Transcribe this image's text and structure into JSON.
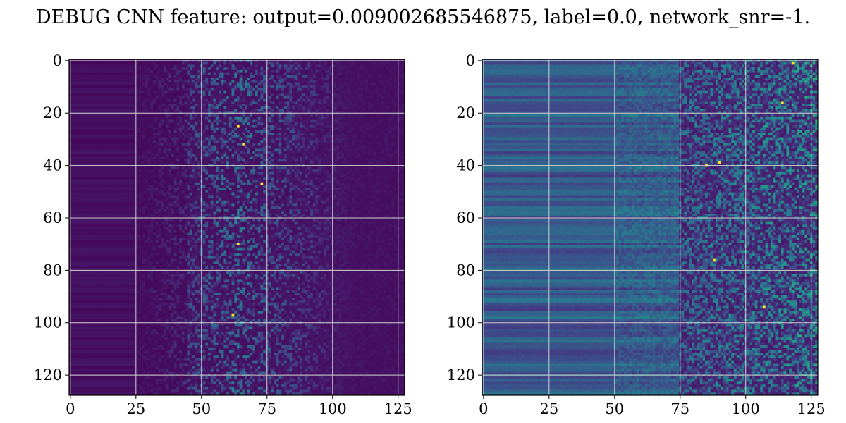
{
  "title": "DEBUG CNN feature: output=0.009002685546875, label=0.0, network_snr=-1.",
  "chart_data": [
    {
      "type": "heatmap",
      "title": "",
      "xlabel": "",
      "ylabel": "",
      "xlim": [
        0,
        127
      ],
      "ylim": [
        127,
        0
      ],
      "grid": true,
      "colormap": "viridis",
      "x_ticks": [
        "0",
        "25",
        "50",
        "75",
        "100",
        "125"
      ],
      "y_ticks": [
        "0",
        "20",
        "40",
        "60",
        "80",
        "100",
        "120"
      ],
      "grid_size": [
        128,
        128
      ],
      "hotspots": [
        [
          64,
          25
        ],
        [
          73,
          47
        ],
        [
          62,
          97
        ],
        [
          66,
          32
        ],
        [
          64,
          70
        ]
      ]
    },
    {
      "type": "heatmap",
      "title": "",
      "xlabel": "",
      "ylabel": "",
      "xlim": [
        0,
        127
      ],
      "ylim": [
        127,
        0
      ],
      "grid": true,
      "colormap": "viridis",
      "x_ticks": [
        "0",
        "25",
        "50",
        "75",
        "100",
        "125"
      ],
      "y_ticks": [
        "0",
        "20",
        "40",
        "60",
        "80",
        "100",
        "120"
      ],
      "grid_size": [
        128,
        128
      ],
      "hotspots": [
        [
          118,
          1
        ],
        [
          114,
          16
        ],
        [
          88,
          76
        ],
        [
          90,
          39
        ],
        [
          85,
          40
        ],
        [
          107,
          94
        ]
      ]
    }
  ]
}
